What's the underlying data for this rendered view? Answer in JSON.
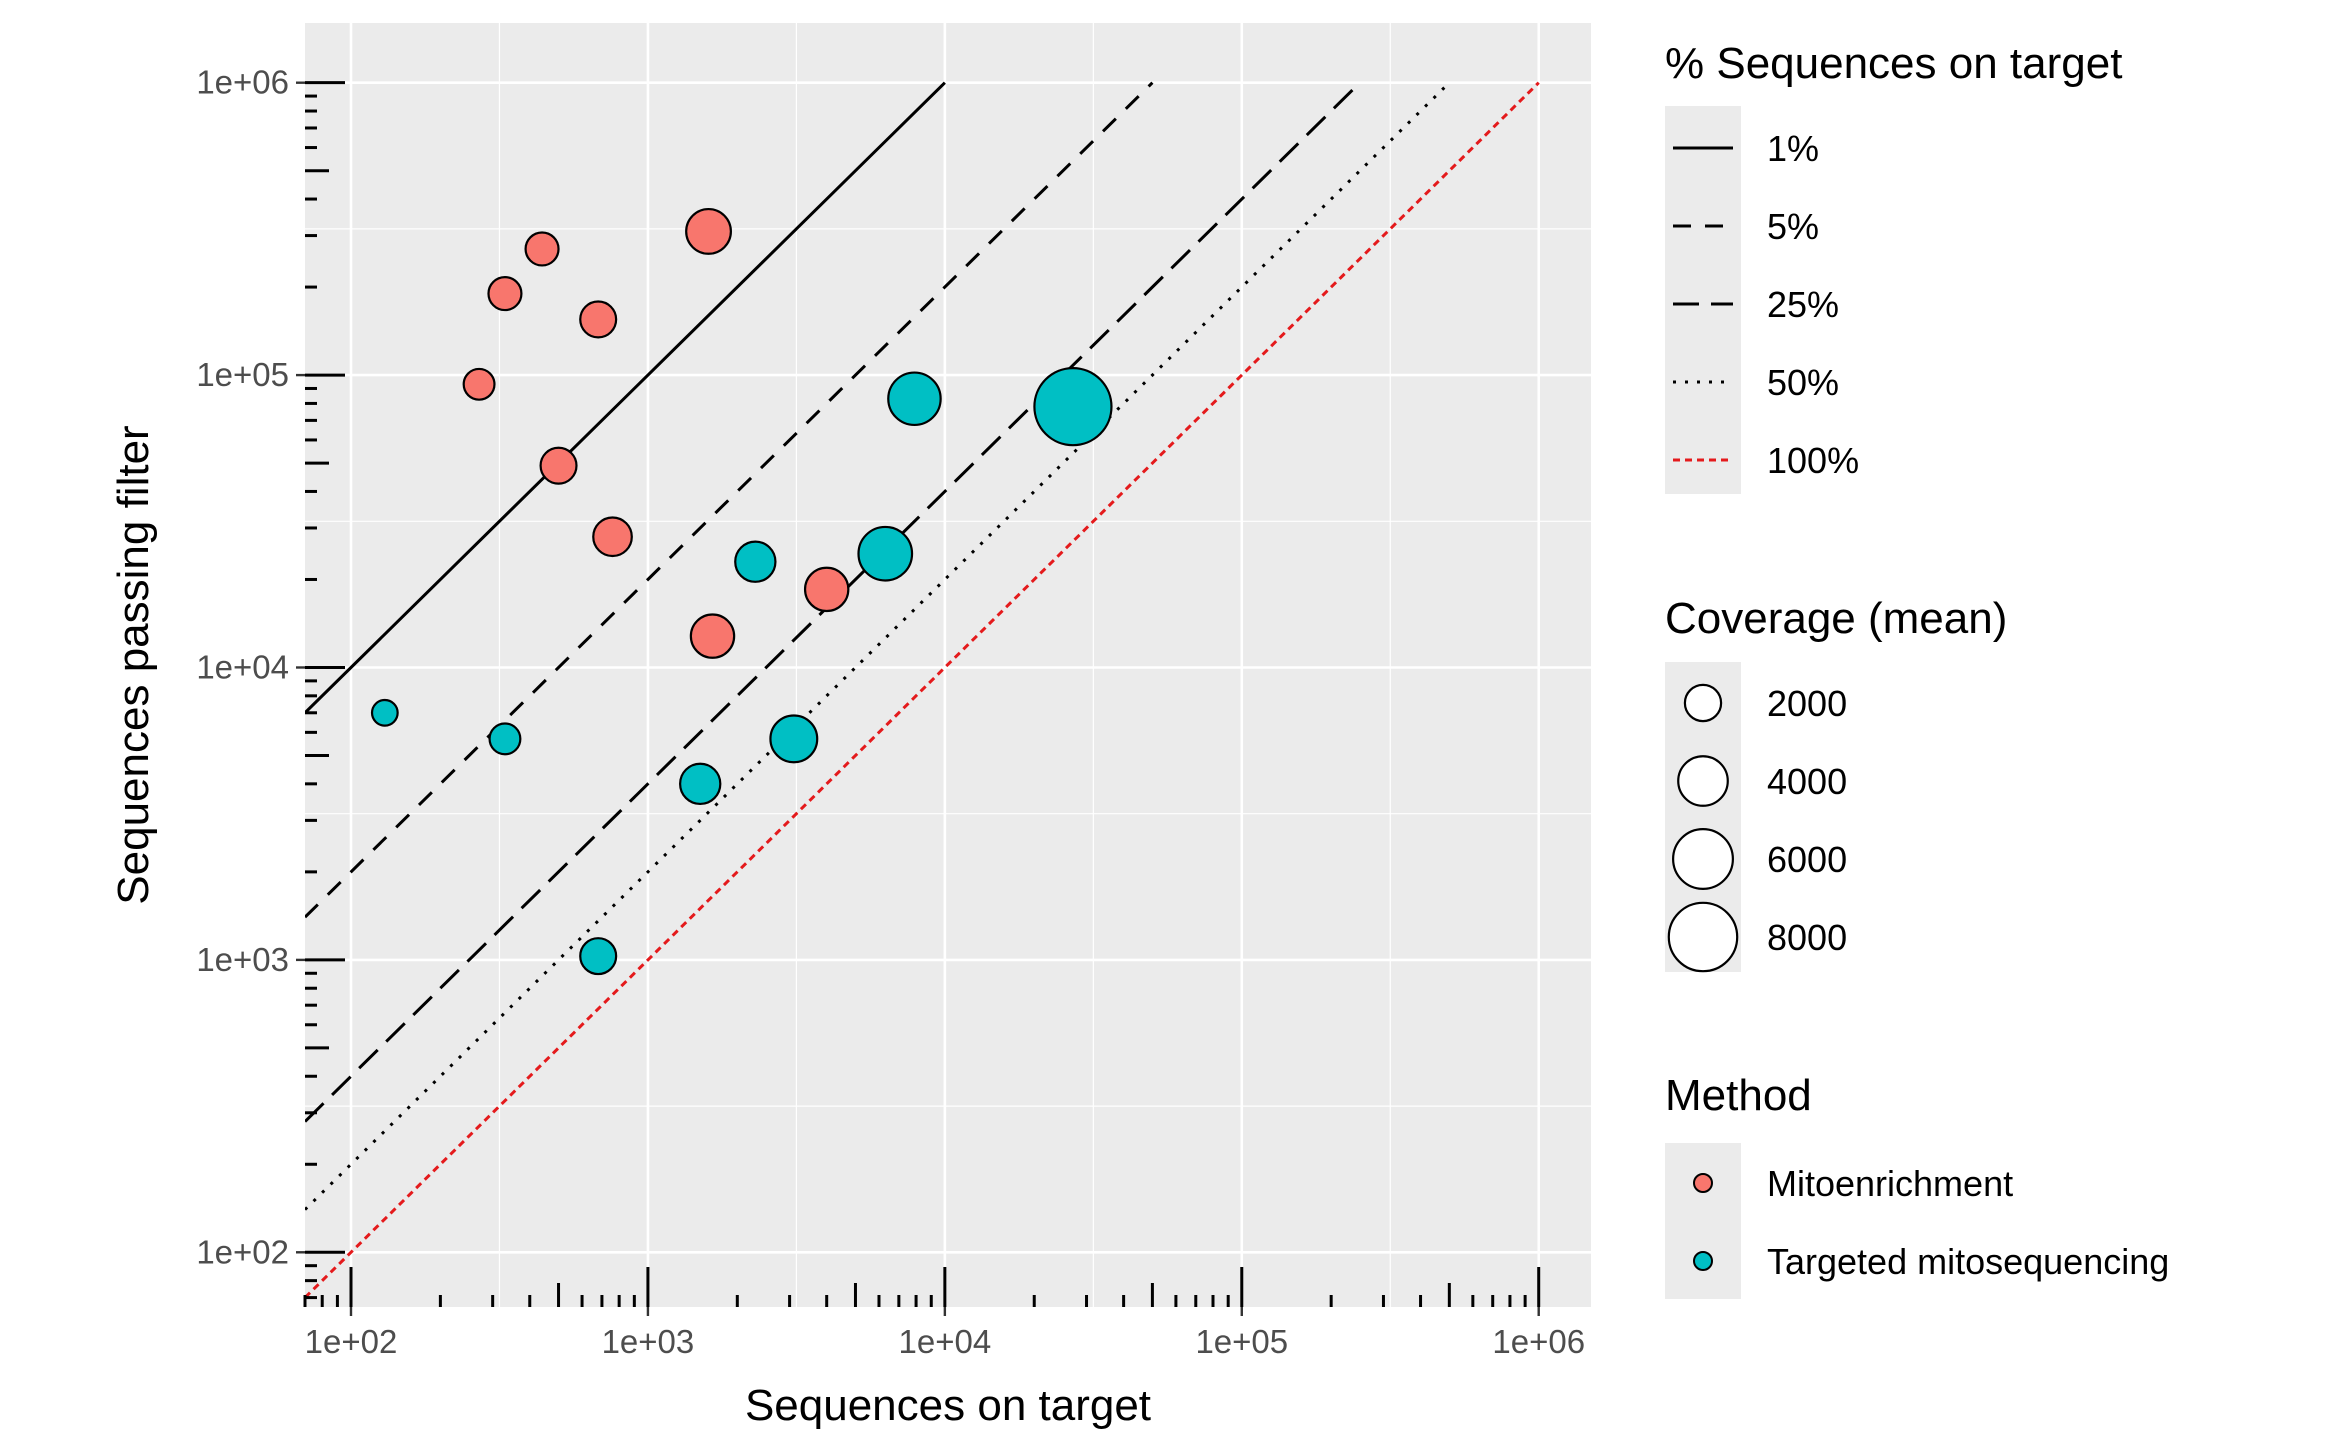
{
  "chart_data": {
    "type": "scatter",
    "x_scale": "log",
    "y_scale": "log",
    "xlim": [
      70,
      1500000
    ],
    "ylim": [
      65,
      1600000
    ],
    "xlabel": "Sequences on target",
    "ylabel": "Sequences passing filter",
    "x_ticks": [
      {
        "value": 100,
        "label": "1e+02"
      },
      {
        "value": 1000,
        "label": "1e+03"
      },
      {
        "value": 10000,
        "label": "1e+04"
      },
      {
        "value": 100000,
        "label": "1e+05"
      },
      {
        "value": 1000000,
        "label": "1e+06"
      }
    ],
    "y_ticks": [
      {
        "value": 100,
        "label": "1e+02"
      },
      {
        "value": 1000,
        "label": "1e+03"
      },
      {
        "value": 10000,
        "label": "1e+04"
      },
      {
        "value": 100000,
        "label": "1e+05"
      },
      {
        "value": 1000000,
        "label": "1e+06"
      }
    ],
    "grid": true,
    "panel_background": "#ebebeb",
    "reference_lines": [
      {
        "label": "1%",
        "fraction": 0.01,
        "style": "solid",
        "color": "#000000"
      },
      {
        "label": "5%",
        "fraction": 0.05,
        "style": "dashed",
        "color": "#000000"
      },
      {
        "label": "25%",
        "fraction": 0.25,
        "style": "longdash",
        "color": "#000000"
      },
      {
        "label": "50%",
        "fraction": 0.5,
        "style": "dotted",
        "color": "#000000"
      },
      {
        "label": "100%",
        "fraction": 1.0,
        "style": "dotted-red",
        "color": "#e41a1c"
      }
    ],
    "series": [
      {
        "name": "Mitoenrichment",
        "color": "#f8766d",
        "points": [
          {
            "x": 1600,
            "y": 310000,
            "coverage": 2600
          },
          {
            "x": 440,
            "y": 270000,
            "coverage": 1200
          },
          {
            "x": 330,
            "y": 190000,
            "coverage": 1200
          },
          {
            "x": 680,
            "y": 155000,
            "coverage": 1500
          },
          {
            "x": 270,
            "y": 93000,
            "coverage": 1000
          },
          {
            "x": 500,
            "y": 49000,
            "coverage": 1500
          },
          {
            "x": 760,
            "y": 28000,
            "coverage": 1800
          },
          {
            "x": 4000,
            "y": 18500,
            "coverage": 2400
          },
          {
            "x": 1650,
            "y": 12800,
            "coverage": 2400
          }
        ]
      },
      {
        "name": "Targeted mitosequencing",
        "color": "#00bfc4",
        "points": [
          {
            "x": 27000,
            "y": 78000,
            "coverage": 9200
          },
          {
            "x": 7900,
            "y": 83000,
            "coverage": 3800
          },
          {
            "x": 6300,
            "y": 24500,
            "coverage": 4000
          },
          {
            "x": 2300,
            "y": 23000,
            "coverage": 2000
          },
          {
            "x": 3100,
            "y": 5700,
            "coverage": 2900
          },
          {
            "x": 1500,
            "y": 4000,
            "coverage": 2000
          },
          {
            "x": 330,
            "y": 5700,
            "coverage": 1000
          },
          {
            "x": 130,
            "y": 7000,
            "coverage": 600
          },
          {
            "x": 680,
            "y": 1030,
            "coverage": 1500
          }
        ]
      }
    ],
    "legends": {
      "lines": {
        "title": "% Sequences on target",
        "items": [
          "1%",
          "5%",
          "25%",
          "50%",
          "100%"
        ]
      },
      "size": {
        "title": "Coverage (mean)",
        "items": [
          {
            "label": "2000",
            "value": 2000
          },
          {
            "label": "4000",
            "value": 4000
          },
          {
            "label": "6000",
            "value": 6000
          },
          {
            "label": "8000",
            "value": 8000
          }
        ]
      },
      "method": {
        "title": "Method",
        "items": [
          {
            "label": "Mitoenrichment",
            "color": "#f8766d"
          },
          {
            "label": "Targeted mitosequencing",
            "color": "#00bfc4"
          }
        ]
      }
    },
    "legend_position": "right"
  }
}
